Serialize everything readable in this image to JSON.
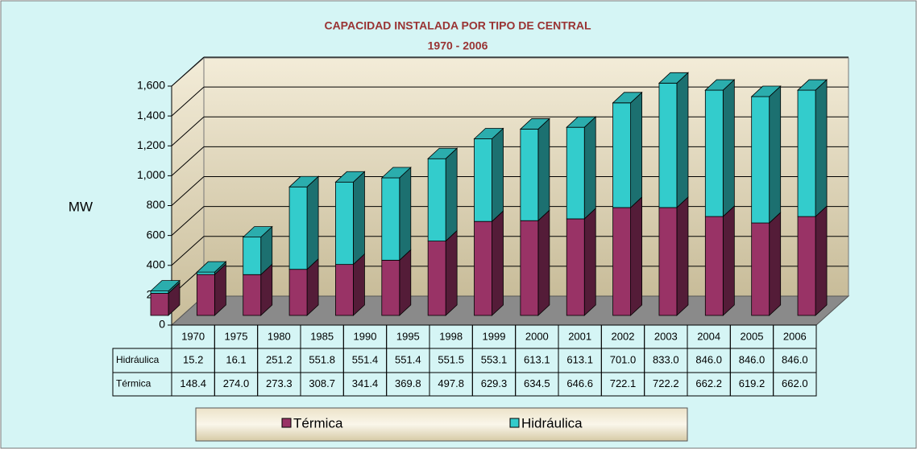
{
  "chart_data": {
    "type": "bar",
    "stacked": true,
    "three_d": true,
    "title": "CAPACIDAD INSTALADA POR TIPO DE CENTRAL",
    "subtitle": "1970 - 2006",
    "y_label": "MW",
    "categories": [
      "1970",
      "1975",
      "1980",
      "1985",
      "1990",
      "1995",
      "1998",
      "1999",
      "2000",
      "2001",
      "2002",
      "2003",
      "2004",
      "2005",
      "2006"
    ],
    "series": [
      {
        "name": "Hidráulica",
        "color": "#33cccc",
        "values": [
          15.2,
          16.1,
          251.2,
          551.8,
          551.4,
          551.4,
          551.5,
          553.1,
          613.1,
          613.1,
          701,
          833,
          846,
          846,
          846
        ],
        "value_labels": [
          "15.2",
          "16.1",
          "251.2",
          "551.8",
          "551.4",
          "551.4",
          "551.5",
          "553.1",
          "613.1",
          "613.1",
          "701.0",
          "833.0",
          "846.0",
          "846.0",
          "846.0"
        ]
      },
      {
        "name": "Térmica",
        "color": "#993366",
        "values": [
          148.4,
          274,
          273.3,
          308.7,
          341.4,
          369.8,
          497.8,
          629.3,
          634.5,
          646.6,
          722.1,
          722.2,
          662.2,
          619.2,
          662
        ],
        "value_labels": [
          "148.4",
          "274.0",
          "273.3",
          "308.7",
          "341.4",
          "369.8",
          "497.8",
          "629.3",
          "634.5",
          "646.6",
          "722.1",
          "722.2",
          "662.2",
          "619.2",
          "662.0"
        ]
      }
    ],
    "ylim": [
      0,
      1600
    ],
    "yticks": [
      0,
      200,
      400,
      600,
      800,
      {
        "value": 1000,
        "label": "1,000"
      },
      {
        "value": 1200,
        "label": "1,200"
      },
      {
        "value": 1400,
        "label": "1,400"
      },
      {
        "value": 1600,
        "label": "1,600"
      }
    ],
    "grid": true,
    "legend": "bottom"
  }
}
